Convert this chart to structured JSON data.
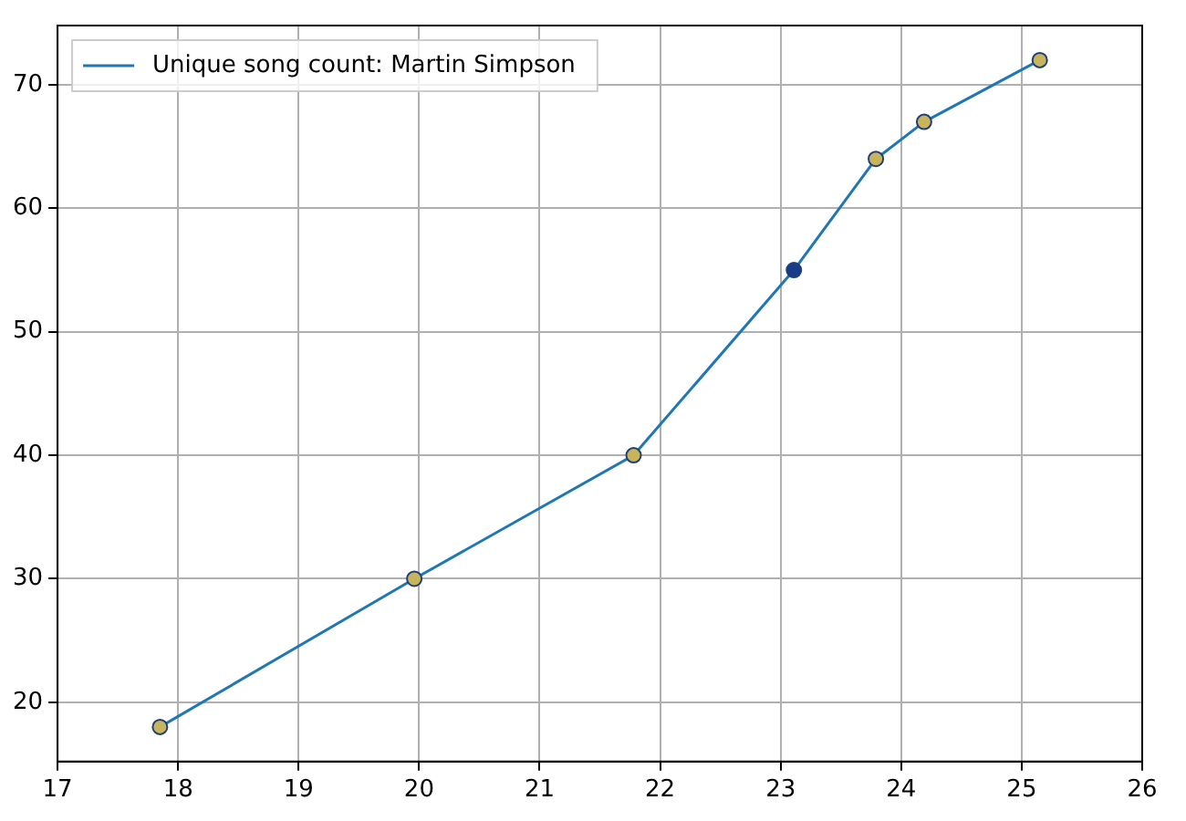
{
  "chart_data": {
    "type": "line",
    "x": [
      17.85,
      19.96,
      21.78,
      23.11,
      23.79,
      24.19,
      25.15
    ],
    "series": [
      {
        "name": "Unique song count: Martin Simpson",
        "color": "#1f77b4",
        "values": [
          18,
          30,
          40,
          55,
          64,
          67,
          72
        ],
        "colors": [
          "#c8b45a",
          "#c8b45a",
          "#c8b45a",
          "#1a3a8a",
          "#c8b45a",
          "#c8b45a",
          "#c8b45a"
        ]
      }
    ],
    "xlim": [
      17,
      26
    ],
    "xticks": [
      17,
      18,
      19,
      20,
      21,
      22,
      23,
      24,
      25,
      26
    ],
    "ylim": [
      15.2,
      74.8
    ],
    "yticks": [
      20,
      30,
      40,
      50,
      60,
      70
    ],
    "grid": true,
    "legend": "top left",
    "marker": "circle",
    "line_style": "solid"
  }
}
